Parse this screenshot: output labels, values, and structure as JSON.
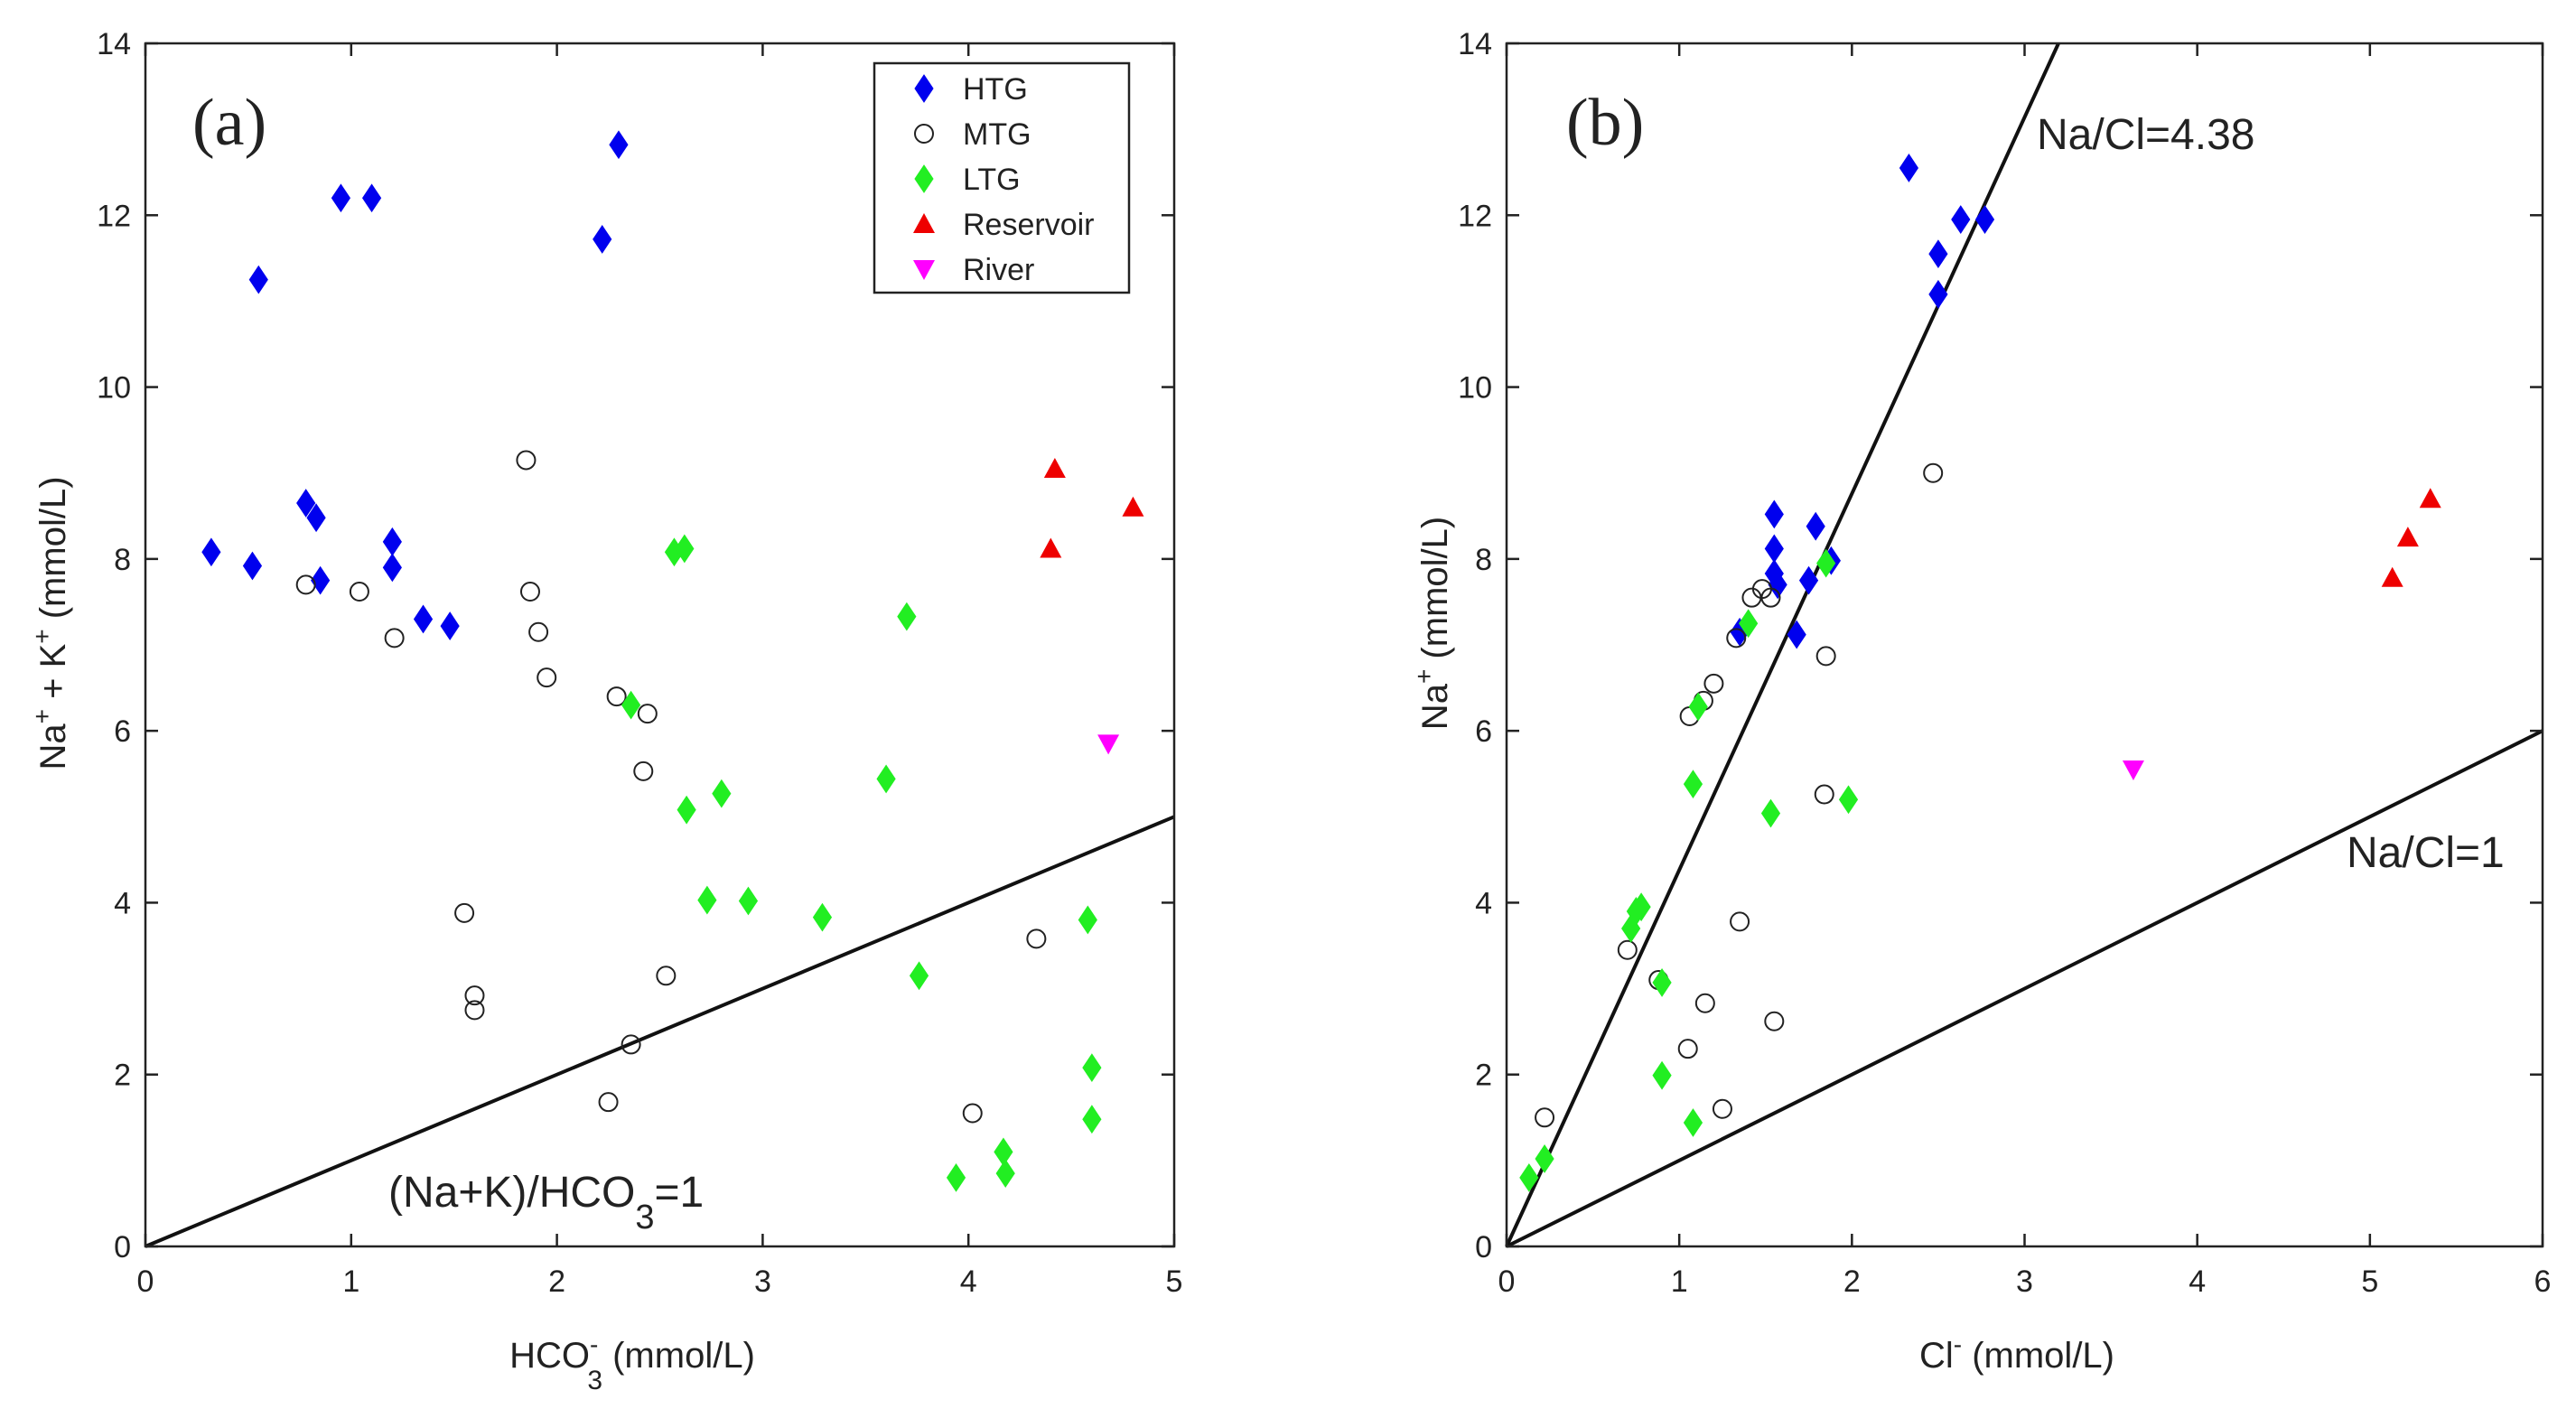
{
  "chart_data": [
    {
      "panel": "(a)",
      "type": "scatter",
      "xlabel": "HCO3- (mmol/L)",
      "ylabel": "Na+ + K+ (mmol/L)",
      "xlim": [
        0,
        5
      ],
      "ylim": [
        0,
        14
      ],
      "xticks": [
        "0",
        "1",
        "2",
        "3",
        "4",
        "5"
      ],
      "yticks": [
        "0",
        "2",
        "4",
        "6",
        "8",
        "10",
        "12",
        "14"
      ],
      "legend_position": "top-right",
      "series": [
        {
          "name": "HTG",
          "color": "#0000ee",
          "marker": "diamond",
          "x": [
            0.55,
            0.95,
            1.1,
            2.22,
            2.3,
            0.32,
            0.52,
            0.78,
            0.83,
            0.85,
            1.2,
            1.2,
            1.35,
            1.48
          ],
          "y": [
            11.25,
            12.2,
            12.2,
            11.72,
            12.82,
            8.08,
            7.92,
            8.65,
            8.48,
            7.75,
            8.2,
            7.9,
            7.3,
            7.22
          ]
        },
        {
          "name": "MTG",
          "color": "#222222",
          "marker": "open-circle",
          "x": [
            0.78,
            1.04,
            1.21,
            1.85,
            1.87,
            1.91,
            1.95,
            2.29,
            2.44,
            2.42,
            1.55,
            1.6,
            1.6,
            2.53,
            2.36,
            2.25,
            4.02,
            4.33
          ],
          "y": [
            7.7,
            7.62,
            7.08,
            9.15,
            7.62,
            7.15,
            6.62,
            6.4,
            6.2,
            5.53,
            3.88,
            2.92,
            2.75,
            3.15,
            2.35,
            1.68,
            1.55,
            3.58
          ]
        },
        {
          "name": "LTG",
          "color": "#22ee22",
          "marker": "diamond",
          "x": [
            2.57,
            2.62,
            2.36,
            2.63,
            2.8,
            2.73,
            2.93,
            3.29,
            3.6,
            3.7,
            3.76,
            3.94,
            4.17,
            4.18,
            4.58,
            4.6,
            4.6
          ],
          "y": [
            8.08,
            8.12,
            6.3,
            5.08,
            5.27,
            4.03,
            4.02,
            3.83,
            5.44,
            7.33,
            3.15,
            0.8,
            1.1,
            0.85,
            3.8,
            2.08,
            1.48
          ]
        },
        {
          "name": "Reservoir",
          "color": "#ee0000",
          "marker": "triangle-up",
          "x": [
            4.42,
            4.4,
            4.8
          ],
          "y": [
            9.05,
            8.12,
            8.6
          ]
        },
        {
          "name": "River",
          "color": "#ff00ff",
          "marker": "triangle-down",
          "x": [
            4.68
          ],
          "y": [
            5.85
          ]
        }
      ],
      "reference_line": {
        "label": "(Na+K)/HCO3=1",
        "slope": 1,
        "intercept": 0
      },
      "legend_labels": [
        "HTG",
        "MTG",
        "LTG",
        "Reservoir",
        "River"
      ]
    },
    {
      "panel": "(b)",
      "type": "scatter",
      "xlabel": "Cl- (mmol/L)",
      "ylabel": "Na+ (mmol/L)",
      "xlim": [
        0,
        6
      ],
      "ylim": [
        0,
        14
      ],
      "xticks": [
        "0",
        "1",
        "2",
        "3",
        "4",
        "5",
        "6"
      ],
      "yticks": [
        "0",
        "2",
        "4",
        "6",
        "8",
        "10",
        "12",
        "14"
      ],
      "series": [
        {
          "name": "HTG",
          "color": "#0000ee",
          "marker": "diamond",
          "x": [
            2.33,
            2.5,
            2.5,
            2.63,
            2.77,
            1.55,
            1.55,
            1.55,
            1.57,
            1.79,
            1.88,
            1.75,
            1.35,
            1.68
          ],
          "y": [
            12.55,
            11.55,
            11.08,
            11.95,
            11.95,
            8.52,
            8.12,
            7.83,
            7.7,
            8.38,
            7.98,
            7.75,
            7.15,
            7.12
          ]
        },
        {
          "name": "MTG",
          "color": "#222222",
          "marker": "open-circle",
          "x": [
            2.47,
            1.48,
            1.42,
            1.53,
            1.33,
            1.85,
            1.2,
            1.14,
            1.06,
            0.7,
            1.84,
            1.35,
            0.88,
            1.15,
            1.05,
            1.55,
            1.25,
            0.22
          ],
          "y": [
            9.0,
            7.65,
            7.55,
            7.55,
            7.08,
            6.87,
            6.55,
            6.35,
            6.17,
            3.45,
            5.26,
            3.78,
            3.1,
            2.83,
            2.3,
            2.62,
            1.6,
            1.5
          ]
        },
        {
          "name": "LTG",
          "color": "#22ee22",
          "marker": "diamond",
          "x": [
            1.4,
            1.11,
            1.85,
            1.08,
            1.53,
            1.98,
            0.72,
            0.75,
            0.78,
            0.9,
            0.9,
            1.08,
            0.13,
            0.22
          ],
          "y": [
            7.25,
            6.28,
            7.95,
            5.38,
            5.04,
            5.2,
            3.7,
            3.9,
            3.95,
            3.07,
            1.99,
            1.44,
            0.8,
            1.02
          ]
        },
        {
          "name": "Reservoir",
          "color": "#ee0000",
          "marker": "triangle-up",
          "x": [
            5.13,
            5.22,
            5.35
          ],
          "y": [
            7.78,
            8.25,
            8.7
          ]
        },
        {
          "name": "River",
          "color": "#ff00ff",
          "marker": "triangle-down",
          "x": [
            3.63
          ],
          "y": [
            5.55
          ]
        }
      ],
      "reference_lines": [
        {
          "label": "Na/Cl=4.38",
          "slope": 4.38,
          "intercept": 0
        },
        {
          "label": "Na/Cl=1",
          "slope": 1,
          "intercept": 0
        }
      ]
    }
  ]
}
